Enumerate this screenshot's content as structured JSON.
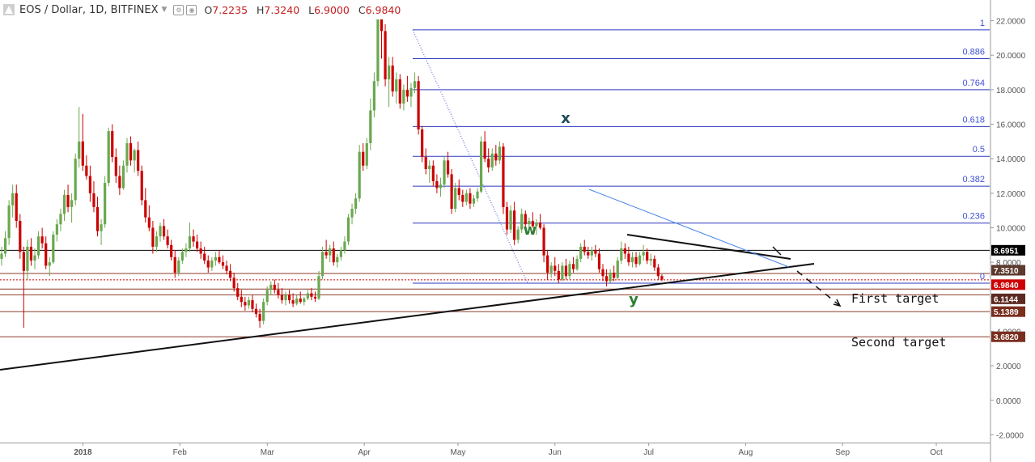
{
  "header": {
    "symbol": "EOS / Dollar, 1D, BITFINEX",
    "ohlc": [
      {
        "k": "O",
        "v": "7.2235"
      },
      {
        "k": "H",
        "v": "7.3240"
      },
      {
        "k": "L",
        "v": "6.9000"
      },
      {
        "k": "C",
        "v": "6.9840"
      }
    ]
  },
  "colors": {
    "up": "#6aa84f",
    "down": "#cc0000",
    "fib": "#2b39c0",
    "trend_blue": "#4a86e8",
    "level_brown": "#8b3a2a"
  },
  "chart_data": {
    "type": "candlestick",
    "y_axis": {
      "ylim": [
        -2.4,
        23
      ],
      "ticks": [
        "22.0000",
        "20.0000",
        "18.0000",
        "16.0000",
        "14.0000",
        "12.0000",
        "10.0000",
        "8.0000",
        "6.0000",
        "4.0000",
        "2.0000",
        "0.0000",
        "-2.0000"
      ],
      "tick_values": [
        22,
        20,
        18,
        16,
        14,
        12,
        10,
        8,
        6,
        4,
        2,
        0,
        -2
      ]
    },
    "x_axis": {
      "labels": [
        "2018",
        "Feb",
        "Mar",
        "Apr",
        "May",
        "Jun",
        "Jul",
        "Aug",
        "Sep",
        "Oct"
      ],
      "label_days": [
        31,
        62,
        90,
        121,
        151,
        182,
        212,
        243,
        274,
        304
      ]
    },
    "price_labels": [
      {
        "text": "8.6951",
        "value": 8.6951,
        "bg": "#000000"
      },
      {
        "text": "7.3510",
        "value": 7.351,
        "bg": "#5c3a2e"
      },
      {
        "text": "6.9840",
        "value": 6.984,
        "bg": "#cc0000"
      },
      {
        "text": "6.1144",
        "value": 6.1144,
        "bg": "#5c2a20"
      },
      {
        "text": "5.1389",
        "value": 5.1389,
        "bg": "#7a2e1e"
      },
      {
        "text": "3.6820",
        "value": 3.682,
        "bg": "#7a2e1e"
      }
    ],
    "fib_levels": [
      {
        "label": "1",
        "value": 21.47
      },
      {
        "label": "0.886",
        "value": 19.8
      },
      {
        "label": "0.764",
        "value": 18.0
      },
      {
        "label": "0.618",
        "value": 15.87
      },
      {
        "label": "0.5",
        "value": 14.14
      },
      {
        "label": "0.382",
        "value": 12.41
      },
      {
        "label": "0.236",
        "value": 10.27
      },
      {
        "label": "0",
        "value": 6.79
      }
    ],
    "wave_labels": [
      {
        "text": "w",
        "day": 163,
        "value": 9.6,
        "color": "#2e7d32"
      },
      {
        "text": "x",
        "day": 193,
        "value": 16.1,
        "color": "#1f4e5a"
      },
      {
        "text": "y",
        "day": 205,
        "value": 5.2,
        "color": "#2e7d32"
      }
    ],
    "annotations": [
      {
        "text": "First target"
      },
      {
        "text": "Second target"
      }
    ],
    "ohlc": [
      [
        8.2,
        8.9,
        7.8,
        8.5
      ],
      [
        8.5,
        9.8,
        8.3,
        9.4
      ],
      [
        9.4,
        11.6,
        9.0,
        11.3
      ],
      [
        11.3,
        12.5,
        10.6,
        12.0
      ],
      [
        12.0,
        12.5,
        10.0,
        10.4
      ],
      [
        10.4,
        10.8,
        8.2,
        8.6
      ],
      [
        8.6,
        8.9,
        4.2,
        7.5
      ],
      [
        7.5,
        9.3,
        7.0,
        8.9
      ],
      [
        8.9,
        9.4,
        7.8,
        8.1
      ],
      [
        8.1,
        8.8,
        7.6,
        8.4
      ],
      [
        8.4,
        9.8,
        8.2,
        9.5
      ],
      [
        9.5,
        10.0,
        8.8,
        9.1
      ],
      [
        9.1,
        9.5,
        7.6,
        7.8
      ],
      [
        7.8,
        8.3,
        7.2,
        8.0
      ],
      [
        8.0,
        9.8,
        7.9,
        9.6
      ],
      [
        9.6,
        10.5,
        9.2,
        10.2
      ],
      [
        10.2,
        11.1,
        9.8,
        10.8
      ],
      [
        10.8,
        12.2,
        10.4,
        11.9
      ],
      [
        11.9,
        12.5,
        10.9,
        11.2
      ],
      [
        11.2,
        12.0,
        10.3,
        11.6
      ],
      [
        11.6,
        14.3,
        11.3,
        14.0
      ],
      [
        14.0,
        17.0,
        13.5,
        15.0
      ],
      [
        15.0,
        16.6,
        13.3,
        13.6
      ],
      [
        13.6,
        14.2,
        12.8,
        13.0
      ],
      [
        13.0,
        13.6,
        11.5,
        12.0
      ],
      [
        12.0,
        12.7,
        10.9,
        11.2
      ],
      [
        11.2,
        11.8,
        9.5,
        9.8
      ],
      [
        9.8,
        10.5,
        9.0,
        10.2
      ],
      [
        10.2,
        13.0,
        10.0,
        12.6
      ],
      [
        12.6,
        15.8,
        12.4,
        15.6
      ],
      [
        15.6,
        16.0,
        13.8,
        14.1
      ],
      [
        14.1,
        14.6,
        12.6,
        13.0
      ],
      [
        13.0,
        13.6,
        11.9,
        12.3
      ],
      [
        12.3,
        13.9,
        12.2,
        13.6
      ],
      [
        13.6,
        15.2,
        13.2,
        14.9
      ],
      [
        14.9,
        15.3,
        13.6,
        13.9
      ],
      [
        13.9,
        14.6,
        13.2,
        14.5
      ],
      [
        14.5,
        15.0,
        13.0,
        13.3
      ],
      [
        13.3,
        13.6,
        11.3,
        11.6
      ],
      [
        11.6,
        12.3,
        10.3,
        10.6
      ],
      [
        10.6,
        11.3,
        9.8,
        10.0
      ],
      [
        10.0,
        10.4,
        8.5,
        8.9
      ],
      [
        8.9,
        9.8,
        8.6,
        9.5
      ],
      [
        9.5,
        10.3,
        9.2,
        10.1
      ],
      [
        10.1,
        10.5,
        9.3,
        9.5
      ],
      [
        9.5,
        9.9,
        8.8,
        9.0
      ],
      [
        9.0,
        9.3,
        8.1,
        8.3
      ],
      [
        8.3,
        8.7,
        7.1,
        7.4
      ],
      [
        7.4,
        8.3,
        7.2,
        8.1
      ],
      [
        8.1,
        8.8,
        7.9,
        8.6
      ],
      [
        8.6,
        9.1,
        8.3,
        8.8
      ],
      [
        8.8,
        10.3,
        8.6,
        9.5
      ],
      [
        9.5,
        9.9,
        8.9,
        9.2
      ],
      [
        9.2,
        9.6,
        8.6,
        8.8
      ],
      [
        8.8,
        9.2,
        8.2,
        8.5
      ],
      [
        8.5,
        8.9,
        7.9,
        8.1
      ],
      [
        8.1,
        8.4,
        7.4,
        7.7
      ],
      [
        7.7,
        8.3,
        7.5,
        8.1
      ],
      [
        8.1,
        8.6,
        7.8,
        8.3
      ],
      [
        8.3,
        8.7,
        7.9,
        8.0
      ],
      [
        8.0,
        8.4,
        7.6,
        7.8
      ],
      [
        7.8,
        8.1,
        7.3,
        7.5
      ],
      [
        7.5,
        7.9,
        6.9,
        7.1
      ],
      [
        7.1,
        7.4,
        6.3,
        6.5
      ],
      [
        6.5,
        6.8,
        5.8,
        6.0
      ],
      [
        6.0,
        6.4,
        5.4,
        5.7
      ],
      [
        5.7,
        6.0,
        5.2,
        5.5
      ],
      [
        5.5,
        6.0,
        5.3,
        5.8
      ],
      [
        5.8,
        6.1,
        5.1,
        5.3
      ],
      [
        5.3,
        5.6,
        4.8,
        5.0
      ],
      [
        5.0,
        5.3,
        4.2,
        4.6
      ],
      [
        4.6,
        5.9,
        4.4,
        5.7
      ],
      [
        5.7,
        6.6,
        5.5,
        6.4
      ],
      [
        6.4,
        6.9,
        6.1,
        6.7
      ],
      [
        6.7,
        7.0,
        6.2,
        6.4
      ],
      [
        6.4,
        6.8,
        5.9,
        6.1
      ],
      [
        6.1,
        6.5,
        5.6,
        5.8
      ],
      [
        5.8,
        6.3,
        5.5,
        6.1
      ],
      [
        6.1,
        6.4,
        5.6,
        5.8
      ],
      [
        5.8,
        6.2,
        5.4,
        5.6
      ],
      [
        5.6,
        6.1,
        5.5,
        5.9
      ],
      [
        5.9,
        6.3,
        5.6,
        5.7
      ],
      [
        5.7,
        6.0,
        5.5,
        5.9
      ],
      [
        5.9,
        6.4,
        5.8,
        6.2
      ],
      [
        6.2,
        6.5,
        5.8,
        6.0
      ],
      [
        6.0,
        6.3,
        5.7,
        5.9
      ],
      [
        5.9,
        7.5,
        5.8,
        7.2
      ],
      [
        7.2,
        8.9,
        7.0,
        8.6
      ],
      [
        8.6,
        9.3,
        8.2,
        8.4
      ],
      [
        8.4,
        9.0,
        8.0,
        8.8
      ],
      [
        8.8,
        9.2,
        7.8,
        8.0
      ],
      [
        8.0,
        8.5,
        7.7,
        8.3
      ],
      [
        8.3,
        8.9,
        8.1,
        8.7
      ],
      [
        8.7,
        9.5,
        8.5,
        9.2
      ],
      [
        9.2,
        10.8,
        9.0,
        10.6
      ],
      [
        10.6,
        11.4,
        10.2,
        11.1
      ],
      [
        11.1,
        12.0,
        10.8,
        11.7
      ],
      [
        11.7,
        14.8,
        11.5,
        14.4
      ],
      [
        14.4,
        14.9,
        13.3,
        13.6
      ],
      [
        13.6,
        15.2,
        13.4,
        14.9
      ],
      [
        14.9,
        17.5,
        14.5,
        16.8
      ],
      [
        16.8,
        19.0,
        16.4,
        18.5
      ],
      [
        18.5,
        23.0,
        18.2,
        22.5
      ],
      [
        22.5,
        22.8,
        19.8,
        21.4
      ],
      [
        21.4,
        21.8,
        18.2,
        18.6
      ],
      [
        18.6,
        19.9,
        17.0,
        19.4
      ],
      [
        19.4,
        19.9,
        17.6,
        17.9
      ],
      [
        17.9,
        19.0,
        17.2,
        18.6
      ],
      [
        18.6,
        18.9,
        16.9,
        17.2
      ],
      [
        17.2,
        18.3,
        16.8,
        18.0
      ],
      [
        18.0,
        18.8,
        17.3,
        17.6
      ],
      [
        17.6,
        18.4,
        17.0,
        18.1
      ],
      [
        18.1,
        19.0,
        17.8,
        18.5
      ],
      [
        18.5,
        18.8,
        15.4,
        15.7
      ],
      [
        15.7,
        15.9,
        13.8,
        14.1
      ],
      [
        14.1,
        14.6,
        13.1,
        13.4
      ],
      [
        13.4,
        13.9,
        12.6,
        13.6
      ],
      [
        13.6,
        13.9,
        12.4,
        12.7
      ],
      [
        12.7,
        13.1,
        12.0,
        12.3
      ],
      [
        12.3,
        12.9,
        11.8,
        12.5
      ],
      [
        12.5,
        14.1,
        12.3,
        13.9
      ],
      [
        13.9,
        14.4,
        12.9,
        13.1
      ],
      [
        13.1,
        13.4,
        10.8,
        11.1
      ],
      [
        11.1,
        12.6,
        10.9,
        12.3
      ],
      [
        12.3,
        12.8,
        11.6,
        11.9
      ],
      [
        11.9,
        12.2,
        11.2,
        11.5
      ],
      [
        11.5,
        12.2,
        11.3,
        12.0
      ],
      [
        12.0,
        12.3,
        11.1,
        11.4
      ],
      [
        11.4,
        11.9,
        11.2,
        11.7
      ],
      [
        11.7,
        12.3,
        11.5,
        12.1
      ],
      [
        12.1,
        15.3,
        12.0,
        15.0
      ],
      [
        15.0,
        15.6,
        13.8,
        14.0
      ],
      [
        14.0,
        14.6,
        13.2,
        13.5
      ],
      [
        13.5,
        14.6,
        13.3,
        14.3
      ],
      [
        14.3,
        14.8,
        13.6,
        13.9
      ],
      [
        13.9,
        15.0,
        13.7,
        14.7
      ],
      [
        14.7,
        14.9,
        10.8,
        11.2
      ],
      [
        11.2,
        11.5,
        9.6,
        9.9
      ],
      [
        9.9,
        11.3,
        9.7,
        11.0
      ],
      [
        11.0,
        11.5,
        9.0,
        9.3
      ],
      [
        9.3,
        10.1,
        9.1,
        9.9
      ],
      [
        9.9,
        11.1,
        9.7,
        10.8
      ],
      [
        10.8,
        11.0,
        9.9,
        10.2
      ],
      [
        10.2,
        10.6,
        9.7,
        10.4
      ],
      [
        10.4,
        10.9,
        10.0,
        10.1
      ],
      [
        10.1,
        10.5,
        9.6,
        10.3
      ],
      [
        10.3,
        10.8,
        9.9,
        10.0
      ],
      [
        10.0,
        10.2,
        8.0,
        8.4
      ],
      [
        8.4,
        8.7,
        7.0,
        7.4
      ],
      [
        7.4,
        8.0,
        7.1,
        7.8
      ],
      [
        7.8,
        8.3,
        7.2,
        7.5
      ],
      [
        7.5,
        7.9,
        6.8,
        7.0
      ],
      [
        7.0,
        8.0,
        6.9,
        7.8
      ],
      [
        7.8,
        8.2,
        7.0,
        7.2
      ],
      [
        7.2,
        8.1,
        7.0,
        7.9
      ],
      [
        7.9,
        8.3,
        7.4,
        7.6
      ],
      [
        7.6,
        8.4,
        7.5,
        8.2
      ],
      [
        8.2,
        9.1,
        8.0,
        8.9
      ],
      [
        8.9,
        9.3,
        8.4,
        8.6
      ],
      [
        8.6,
        8.9,
        8.2,
        8.4
      ],
      [
        8.4,
        8.9,
        8.1,
        8.7
      ],
      [
        8.7,
        9.0,
        8.3,
        8.5
      ],
      [
        8.5,
        8.8,
        7.4,
        7.6
      ],
      [
        7.6,
        7.9,
        6.9,
        7.2
      ],
      [
        7.2,
        7.6,
        6.6,
        6.9
      ],
      [
        6.9,
        7.6,
        6.8,
        7.4
      ],
      [
        7.4,
        7.8,
        6.9,
        7.1
      ],
      [
        7.1,
        8.3,
        7.0,
        8.1
      ],
      [
        8.1,
        9.2,
        7.9,
        8.8
      ],
      [
        8.8,
        9.1,
        8.2,
        8.5
      ],
      [
        8.5,
        8.9,
        7.8,
        8.0
      ],
      [
        8.0,
        8.6,
        7.7,
        8.3
      ],
      [
        8.3,
        8.6,
        7.7,
        7.9
      ],
      [
        7.9,
        8.6,
        7.8,
        8.4
      ],
      [
        8.4,
        9.0,
        8.1,
        8.6
      ],
      [
        8.6,
        8.8,
        7.9,
        8.1
      ],
      [
        8.1,
        8.5,
        7.8,
        8.2
      ],
      [
        8.2,
        8.4,
        7.5,
        7.7
      ],
      [
        7.7,
        7.9,
        7.0,
        7.2
      ],
      [
        7.2,
        7.3,
        6.9,
        7.0
      ]
    ]
  }
}
